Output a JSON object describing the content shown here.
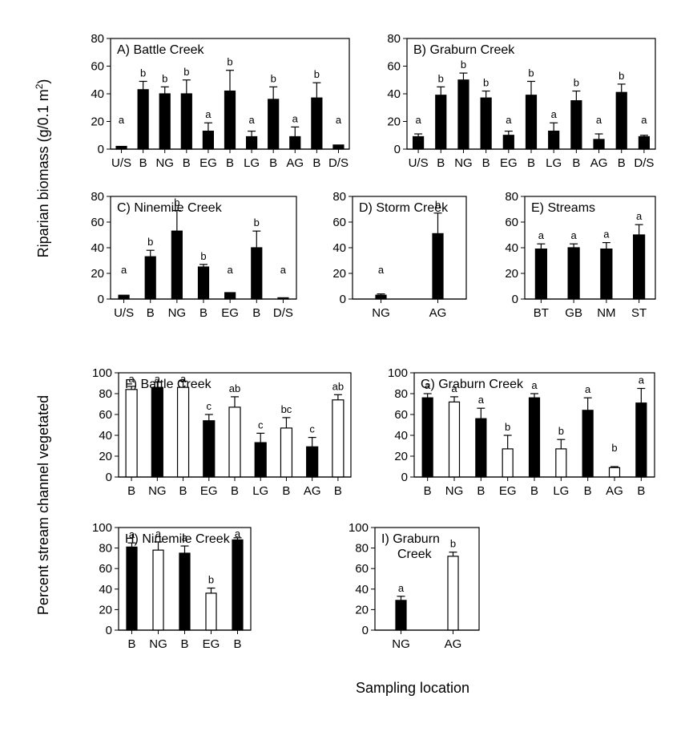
{
  "figure": {
    "ylabel_top": "Riparian biomass (g/0.1 m",
    "ylabel_top_sup": "2",
    "ylabel_top_close": ")",
    "ylabel_bottom": "Percent stream channel vegetated",
    "xlabel": "Sampling location"
  },
  "chart_data": [
    {
      "id": "A",
      "type": "bar",
      "title": "A) Battle Creek",
      "ylim": [
        0,
        80
      ],
      "yticks": [
        0,
        20,
        40,
        60,
        80
      ],
      "categories": [
        "U/S",
        "B",
        "NG",
        "B",
        "EG",
        "B",
        "LG",
        "B",
        "AG",
        "B",
        "D/S"
      ],
      "values": [
        2,
        43,
        40,
        40,
        13,
        42,
        9,
        36,
        9,
        37,
        3
      ],
      "errors": [
        0,
        6,
        5,
        10,
        6,
        15,
        4,
        9,
        7,
        11,
        0
      ],
      "letters": [
        "a",
        "b",
        "b",
        "b",
        "a",
        "b",
        "a",
        "b",
        "a",
        "b",
        "a"
      ],
      "fills": [
        "black",
        "black",
        "black",
        "black",
        "black",
        "black",
        "black",
        "black",
        "black",
        "black",
        "black"
      ]
    },
    {
      "id": "B",
      "type": "bar",
      "title": "B) Graburn Creek",
      "ylim": [
        0,
        80
      ],
      "yticks": [
        0,
        20,
        40,
        60,
        80
      ],
      "categories": [
        "U/S",
        "B",
        "NG",
        "B",
        "EG",
        "B",
        "LG",
        "B",
        "AG",
        "B",
        "D/S"
      ],
      "values": [
        9,
        39,
        50,
        37,
        10,
        39,
        13,
        35,
        7,
        41,
        9
      ],
      "errors": [
        2,
        6,
        5,
        5,
        3,
        10,
        6,
        7,
        4,
        6,
        1
      ],
      "letters": [
        "a",
        "b",
        "b",
        "b",
        "a",
        "b",
        "a",
        "b",
        "a",
        "b",
        "a"
      ],
      "fills": [
        "black",
        "black",
        "black",
        "black",
        "black",
        "black",
        "black",
        "black",
        "black",
        "black",
        "black"
      ]
    },
    {
      "id": "C",
      "type": "bar",
      "title": "C) Ninemile Creek",
      "ylim": [
        0,
        80
      ],
      "yticks": [
        0,
        20,
        40,
        60,
        80
      ],
      "categories": [
        "U/S",
        "B",
        "NG",
        "B",
        "EG",
        "B",
        "D/S"
      ],
      "values": [
        3,
        33,
        53,
        25,
        5,
        40,
        1
      ],
      "errors": [
        0,
        5,
        16,
        2,
        0,
        13,
        0
      ],
      "letters": [
        "a",
        "b",
        "b",
        "b",
        "a",
        "b",
        "a"
      ],
      "fills": [
        "black",
        "black",
        "black",
        "black",
        "black",
        "black",
        "black"
      ]
    },
    {
      "id": "D",
      "type": "bar",
      "title": "D) Storm Creek",
      "ylim": [
        0,
        80
      ],
      "yticks": [
        0,
        20,
        40,
        60,
        80
      ],
      "categories": [
        "NG",
        "AG"
      ],
      "values": [
        3,
        51
      ],
      "errors": [
        1,
        16
      ],
      "letters": [
        "a",
        "b"
      ],
      "fills": [
        "black",
        "black"
      ]
    },
    {
      "id": "E",
      "type": "bar",
      "title": "E) Streams",
      "ylim": [
        0,
        80
      ],
      "yticks": [
        0,
        20,
        40,
        60,
        80
      ],
      "categories": [
        "BT",
        "GB",
        "NM",
        "ST"
      ],
      "values": [
        39,
        40,
        39,
        50
      ],
      "errors": [
        4,
        3,
        5,
        8
      ],
      "letters": [
        "a",
        "a",
        "a",
        "a"
      ],
      "fills": [
        "black",
        "black",
        "black",
        "black"
      ]
    },
    {
      "id": "F",
      "type": "bar",
      "title": "F) Battle Creek",
      "ylim": [
        0,
        100
      ],
      "yticks": [
        0,
        20,
        40,
        60,
        80,
        100
      ],
      "categories": [
        "B",
        "NG",
        "B",
        "EG",
        "B",
        "LG",
        "B",
        "AG",
        "B"
      ],
      "values": [
        84,
        86,
        86,
        54,
        67,
        33,
        47,
        29,
        74
      ],
      "errors": [
        3,
        5,
        6,
        6,
        10,
        9,
        10,
        9,
        5
      ],
      "letters": [
        "a",
        "a",
        "a",
        "c",
        "ab",
        "c",
        "bc",
        "c",
        "ab"
      ],
      "fills": [
        "white",
        "black",
        "white",
        "black",
        "white",
        "black",
        "white",
        "black",
        "white"
      ]
    },
    {
      "id": "G",
      "type": "bar",
      "title": "G) Graburn Creek",
      "ylim": [
        0,
        100
      ],
      "yticks": [
        0,
        20,
        40,
        60,
        80,
        100
      ],
      "categories": [
        "B",
        "NG",
        "B",
        "EG",
        "B",
        "LG",
        "B",
        "AG",
        "B"
      ],
      "values": [
        76,
        72,
        56,
        27,
        76,
        27,
        64,
        9,
        71
      ],
      "errors": [
        4,
        5,
        10,
        13,
        4,
        9,
        12,
        1,
        14
      ],
      "letters": [
        "a",
        "a",
        "a",
        "b",
        "a",
        "b",
        "a",
        "b",
        "a"
      ],
      "fills": [
        "black",
        "white",
        "black",
        "white",
        "black",
        "white",
        "black",
        "white",
        "black"
      ]
    },
    {
      "id": "H",
      "type": "bar",
      "title": "H) Ninemile Creek",
      "ylim": [
        0,
        100
      ],
      "yticks": [
        0,
        20,
        40,
        60,
        80,
        100
      ],
      "categories": [
        "B",
        "NG",
        "B",
        "EG",
        "B"
      ],
      "values": [
        81,
        78,
        75,
        36,
        88
      ],
      "errors": [
        4,
        8,
        7,
        5,
        2
      ],
      "letters": [
        "a",
        "a",
        "a",
        "b",
        "a"
      ],
      "fills": [
        "black",
        "white",
        "black",
        "white",
        "black"
      ]
    },
    {
      "id": "I",
      "type": "bar",
      "title": "I) Graburn",
      "title2": "Creek",
      "ylim": [
        0,
        100
      ],
      "yticks": [
        0,
        20,
        40,
        60,
        80,
        100
      ],
      "categories": [
        "NG",
        "AG"
      ],
      "values": [
        29,
        72
      ],
      "errors": [
        4,
        4
      ],
      "letters": [
        "a",
        "b"
      ],
      "fills": [
        "black",
        "white"
      ]
    }
  ]
}
